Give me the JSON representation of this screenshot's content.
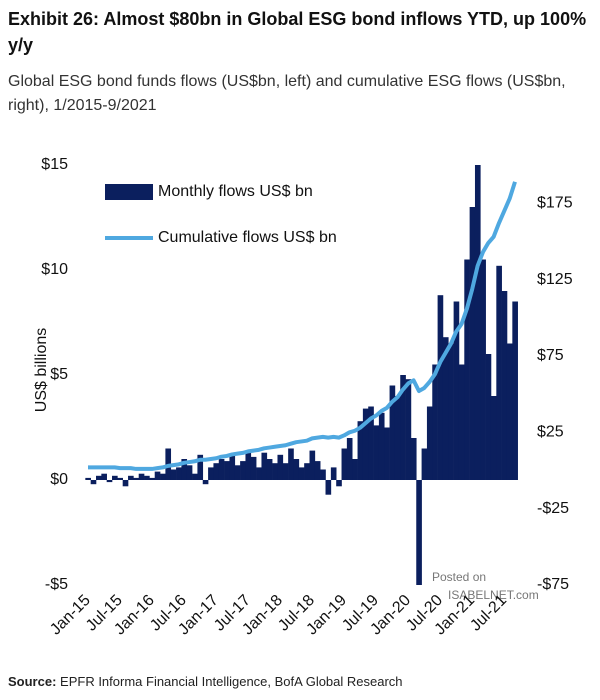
{
  "chart_data": {
    "type": "bar_line",
    "title": "Exhibit 26: Almost $80bn in Global ESG bond inflows YTD, up 100% y/y",
    "subtitle": "Global ESG bond funds flows (US$bn, left) and cumulative ESG flows (US$bn, right), 1/2015-9/2021",
    "y_label": "US$ billions",
    "categories": [
      "Jan-15",
      null,
      null,
      null,
      null,
      null,
      "Jul-15",
      null,
      null,
      null,
      null,
      null,
      "Jan-16",
      null,
      null,
      null,
      null,
      null,
      "Jul-16",
      null,
      null,
      null,
      null,
      null,
      "Jan-17",
      null,
      null,
      null,
      null,
      null,
      "Jul-17",
      null,
      null,
      null,
      null,
      null,
      "Jan-18",
      null,
      null,
      null,
      null,
      null,
      "Jul-18",
      null,
      null,
      null,
      null,
      null,
      "Jan-19",
      null,
      null,
      null,
      null,
      null,
      "Jul-19",
      null,
      null,
      null,
      null,
      null,
      "Jan-20",
      null,
      null,
      null,
      null,
      null,
      "Jul-20",
      null,
      null,
      null,
      null,
      null,
      "Jan-21",
      null,
      null,
      null,
      null,
      null,
      "Jul-21",
      null,
      null
    ],
    "series": [
      {
        "name": "Monthly  flows US$ bn",
        "color": "#0b1f5e",
        "axis": "y",
        "values": [
          0.1,
          -0.2,
          0.2,
          0.3,
          -0.1,
          0.2,
          0.1,
          -0.3,
          0.2,
          0.1,
          0.3,
          0.2,
          0.1,
          0.4,
          0.3,
          1.5,
          0.5,
          0.6,
          1.0,
          0.7,
          0.3,
          1.2,
          -0.2,
          0.6,
          0.8,
          1.0,
          0.9,
          1.2,
          0.7,
          0.9,
          1.4,
          1.1,
          0.6,
          1.3,
          1.0,
          0.8,
          1.2,
          0.8,
          1.5,
          1.0,
          0.6,
          0.8,
          1.4,
          0.9,
          0.5,
          -0.7,
          0.6,
          -0.3,
          1.5,
          2.0,
          1.0,
          2.8,
          3.4,
          3.5,
          2.6,
          3.2,
          2.5,
          4.5,
          4.0,
          5.0,
          4.8,
          2.0,
          -5.0,
          1.5,
          3.5,
          5.5,
          8.8,
          6.8,
          6.5,
          8.5,
          5.5,
          10.5,
          13.0,
          15.0,
          10.5,
          6.0,
          4.0,
          10.2,
          9.0,
          6.5,
          8.5
        ]
      },
      {
        "name": "Cumulative flows US$ bn",
        "color": "#4fa8e0",
        "axis": "y2",
        "values": [
          2,
          2,
          2,
          2,
          2,
          2,
          1.5,
          1.5,
          1.5,
          1,
          1,
          1,
          1,
          1.5,
          2,
          3,
          3.5,
          4,
          5,
          5.5,
          6,
          7,
          7,
          7.5,
          8,
          9,
          9.5,
          10.5,
          11,
          11.5,
          12.5,
          13,
          13.5,
          14.5,
          15,
          15.5,
          16,
          16.5,
          17.5,
          18.5,
          19,
          19.5,
          21,
          21.5,
          22,
          21.5,
          22,
          21.5,
          23,
          25,
          26,
          28,
          31,
          34,
          36,
          39,
          41,
          45,
          48,
          53,
          57,
          59,
          52,
          54,
          58,
          63,
          71,
          77,
          83,
          91,
          96,
          106,
          119,
          134,
          143,
          149,
          153,
          162,
          170,
          178,
          189
        ]
      }
    ],
    "ylim": [
      -5,
      15
    ],
    "yticks": [
      {
        "value": -5,
        "label": "-$5"
      },
      {
        "value": 0,
        "label": "$0"
      },
      {
        "value": 5,
        "label": "$5"
      },
      {
        "value": 10,
        "label": "$10"
      },
      {
        "value": 15,
        "label": "$15"
      }
    ],
    "y2lim": [
      -75,
      200
    ],
    "y2ticks": [
      {
        "value": -75,
        "label": "-$75"
      },
      {
        "value": -25,
        "label": "-$25"
      },
      {
        "value": 25,
        "label": "$25"
      },
      {
        "value": 75,
        "label": "$75"
      },
      {
        "value": 125,
        "label": "$125"
      },
      {
        "value": 175,
        "label": "$175"
      }
    ],
    "source_label": "Source:",
    "source_text": "EPFR Informa Financial Intelligence, BofA Global Research",
    "watermark": [
      "Posted on",
      "ISABELNET.com"
    ]
  }
}
